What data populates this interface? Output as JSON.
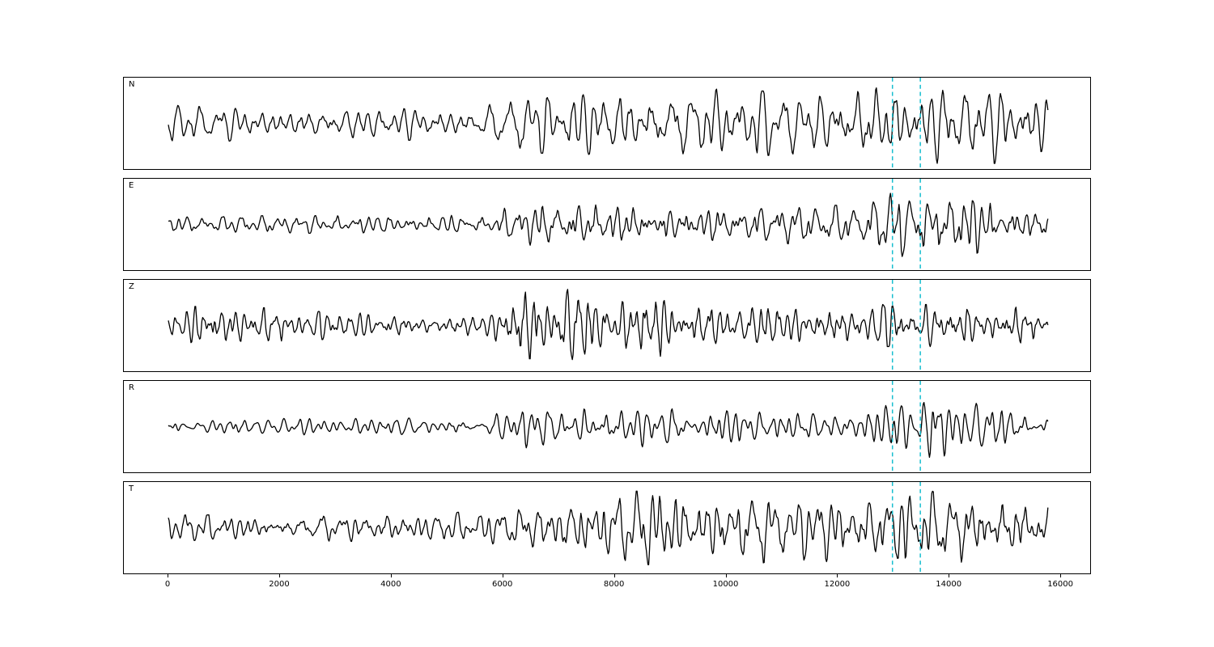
{
  "figure": {
    "background": "#ffffff",
    "kind": "five-channel seismogram waveform plot"
  },
  "chart_data": {
    "type": "line",
    "title": "",
    "xlabel": "",
    "ylabel": "",
    "x_ticks": [
      0,
      2000,
      4000,
      6000,
      8000,
      10000,
      12000,
      14000,
      16000
    ],
    "xlim": [
      -800,
      16550
    ],
    "trace": {
      "start": 0,
      "end": 15800,
      "color": "#000000"
    },
    "vlines": {
      "positions": [
        13000,
        13500
      ],
      "color": "#17becf",
      "style": "dashed"
    },
    "waveform_model": {
      "note": "Traces are band-limited random oscillations; envelope breakpoints [x, relative_amplitude] estimated from the figure.",
      "main_components": 10,
      "main_freq_range": [
        0.0022,
        0.0085
      ],
      "hf_components": 4,
      "hf_freq_range": [
        0.009,
        0.018
      ],
      "sample_step": 14
    },
    "panels": [
      {
        "label": "N",
        "seed": 101,
        "envelope": [
          [
            0,
            0.45
          ],
          [
            2000,
            0.4
          ],
          [
            5600,
            0.4
          ],
          [
            6200,
            0.65
          ],
          [
            7500,
            0.8
          ],
          [
            9200,
            0.85
          ],
          [
            11000,
            0.75
          ],
          [
            12500,
            0.9
          ],
          [
            13600,
            0.95
          ],
          [
            14400,
            1.0
          ],
          [
            15800,
            0.85
          ]
        ]
      },
      {
        "label": "E",
        "seed": 202,
        "envelope": [
          [
            0,
            0.2
          ],
          [
            5600,
            0.22
          ],
          [
            6200,
            0.45
          ],
          [
            7200,
            0.6
          ],
          [
            8800,
            0.5
          ],
          [
            12300,
            0.45
          ],
          [
            13000,
            0.8
          ],
          [
            13600,
            0.75
          ],
          [
            14300,
            1.0
          ],
          [
            15000,
            0.55
          ],
          [
            15800,
            0.45
          ]
        ]
      },
      {
        "label": "Z",
        "seed": 303,
        "envelope": [
          [
            0,
            0.4
          ],
          [
            900,
            0.5
          ],
          [
            2500,
            0.35
          ],
          [
            4800,
            0.22
          ],
          [
            5800,
            0.25
          ],
          [
            6300,
            1.0
          ],
          [
            7300,
            0.9
          ],
          [
            8200,
            0.65
          ],
          [
            8600,
            0.85
          ],
          [
            9500,
            0.55
          ],
          [
            12000,
            0.5
          ],
          [
            15800,
            0.5
          ]
        ]
      },
      {
        "label": "R",
        "seed": 404,
        "envelope": [
          [
            0,
            0.18
          ],
          [
            5600,
            0.22
          ],
          [
            6300,
            0.5
          ],
          [
            7500,
            0.55
          ],
          [
            9000,
            0.45
          ],
          [
            12500,
            0.4
          ],
          [
            13000,
            0.85
          ],
          [
            13500,
            0.7
          ],
          [
            14400,
            1.0
          ],
          [
            15100,
            0.5
          ],
          [
            15800,
            0.45
          ]
        ]
      },
      {
        "label": "T",
        "seed": 505,
        "envelope": [
          [
            0,
            0.3
          ],
          [
            3000,
            0.32
          ],
          [
            5800,
            0.38
          ],
          [
            6500,
            0.6
          ],
          [
            7800,
            0.85
          ],
          [
            9200,
            0.9
          ],
          [
            11500,
            0.8
          ],
          [
            13500,
            0.85
          ],
          [
            15300,
            1.0
          ],
          [
            15800,
            0.5
          ]
        ]
      }
    ]
  }
}
